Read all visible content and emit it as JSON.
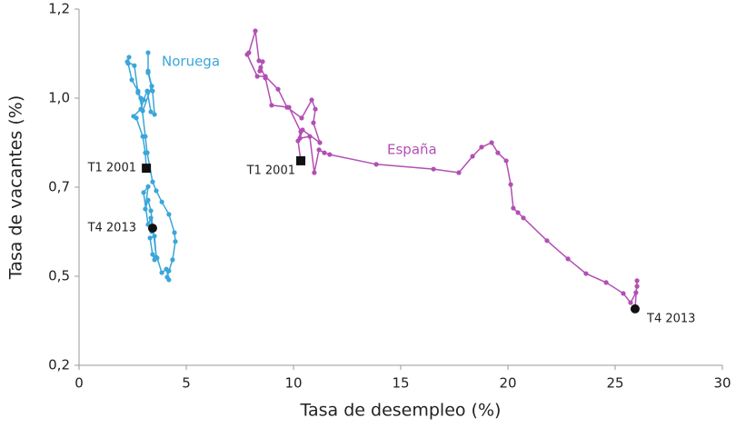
{
  "chart_data": {
    "type": "scatter-line",
    "x_label": "Tasa de desempleo (%)",
    "y_label": "Tasa de vacantes (%)",
    "xlim": [
      0,
      30
    ],
    "xticks": [
      0,
      5,
      10,
      15,
      20,
      25,
      30
    ],
    "ylim": [
      0.2,
      1.2
    ],
    "yticks": [
      {
        "value": 0.2,
        "label": "0,2"
      },
      {
        "value": 0.5,
        "label": "0,5"
      },
      {
        "value": 0.7,
        "label": "0,7"
      },
      {
        "value": 1.0,
        "label": "1,0"
      },
      {
        "value": 1.2,
        "label": "1,2"
      }
    ],
    "series": [
      {
        "name": "Noruega",
        "color": "#3aa6d9",
        "start_label": "T1 2001",
        "end_label": "T4 2013",
        "x": [
          3.14,
          3.09,
          2.97,
          2.67,
          2.54,
          2.88,
          3.01,
          3.18,
          3.35,
          3.52,
          3.43,
          3.22,
          3.22,
          3.22,
          3.39,
          2.97,
          2.75,
          2.46,
          2.29,
          2.33,
          2.25,
          2.58,
          2.75,
          2.88,
          3.09,
          3.18,
          3.43,
          3.6,
          3.86,
          4.19,
          4.45,
          4.49,
          4.36,
          4.19,
          4.11,
          4.19,
          4.07,
          3.86,
          3.64,
          3.52,
          3.43,
          3.31,
          3.52,
          3.6,
          3.35,
          3.22,
          3.09,
          3.22,
          3.01,
          3.22,
          3.35,
          3.39,
          3.43
        ],
        "values": [
          0.764,
          0.816,
          0.871,
          0.933,
          0.939,
          0.963,
          0.994,
          1.016,
          0.954,
          0.945,
          1.016,
          1.057,
          1.102,
          1.061,
          1.027,
          0.957,
          1.016,
          1.041,
          1.078,
          1.092,
          1.082,
          1.073,
          1.012,
          1.0,
          0.871,
          0.816,
          0.718,
          0.692,
          0.667,
          0.639,
          0.598,
          0.578,
          0.537,
          0.512,
          0.497,
          0.488,
          0.516,
          0.508,
          0.541,
          0.537,
          0.549,
          0.586,
          0.59,
          0.543,
          0.647,
          0.671,
          0.651,
          0.702,
          0.688,
          0.616,
          0.631,
          0.6,
          0.608
        ]
      },
      {
        "name": "España",
        "color": "#b24fb4",
        "start_label": "T1 2001",
        "end_label": "T4 2013",
        "x": [
          10.34,
          10.21,
          10.34,
          9.79,
          8.98,
          8.69,
          8.47,
          8.43,
          8.56,
          8.39,
          8.22,
          7.92,
          7.84,
          8.31,
          8.69,
          9.28,
          9.7,
          10.38,
          10.85,
          11.02,
          10.93,
          11.23,
          10.42,
          10.3,
          10.76,
          10.97,
          11.19,
          11.44,
          11.69,
          13.86,
          16.53,
          17.71,
          18.35,
          18.77,
          19.24,
          19.53,
          19.92,
          20.13,
          20.25,
          20.47,
          20.72,
          21.82,
          22.8,
          23.64,
          24.58,
          25.38,
          25.72,
          25.97,
          26.02,
          26.02,
          25.93
        ],
        "values": [
          0.789,
          0.856,
          0.887,
          0.969,
          0.976,
          1.045,
          1.069,
          1.061,
          1.082,
          1.084,
          1.151,
          1.102,
          1.098,
          1.049,
          1.049,
          1.02,
          0.969,
          0.933,
          0.994,
          0.963,
          0.917,
          0.85,
          0.893,
          0.865,
          0.871,
          0.749,
          0.826,
          0.816,
          0.81,
          0.777,
          0.761,
          0.749,
          0.804,
          0.835,
          0.85,
          0.816,
          0.789,
          0.709,
          0.653,
          0.643,
          0.631,
          0.58,
          0.539,
          0.506,
          0.479,
          0.442,
          0.411,
          0.445,
          0.466,
          0.485,
          0.39
        ]
      }
    ]
  }
}
